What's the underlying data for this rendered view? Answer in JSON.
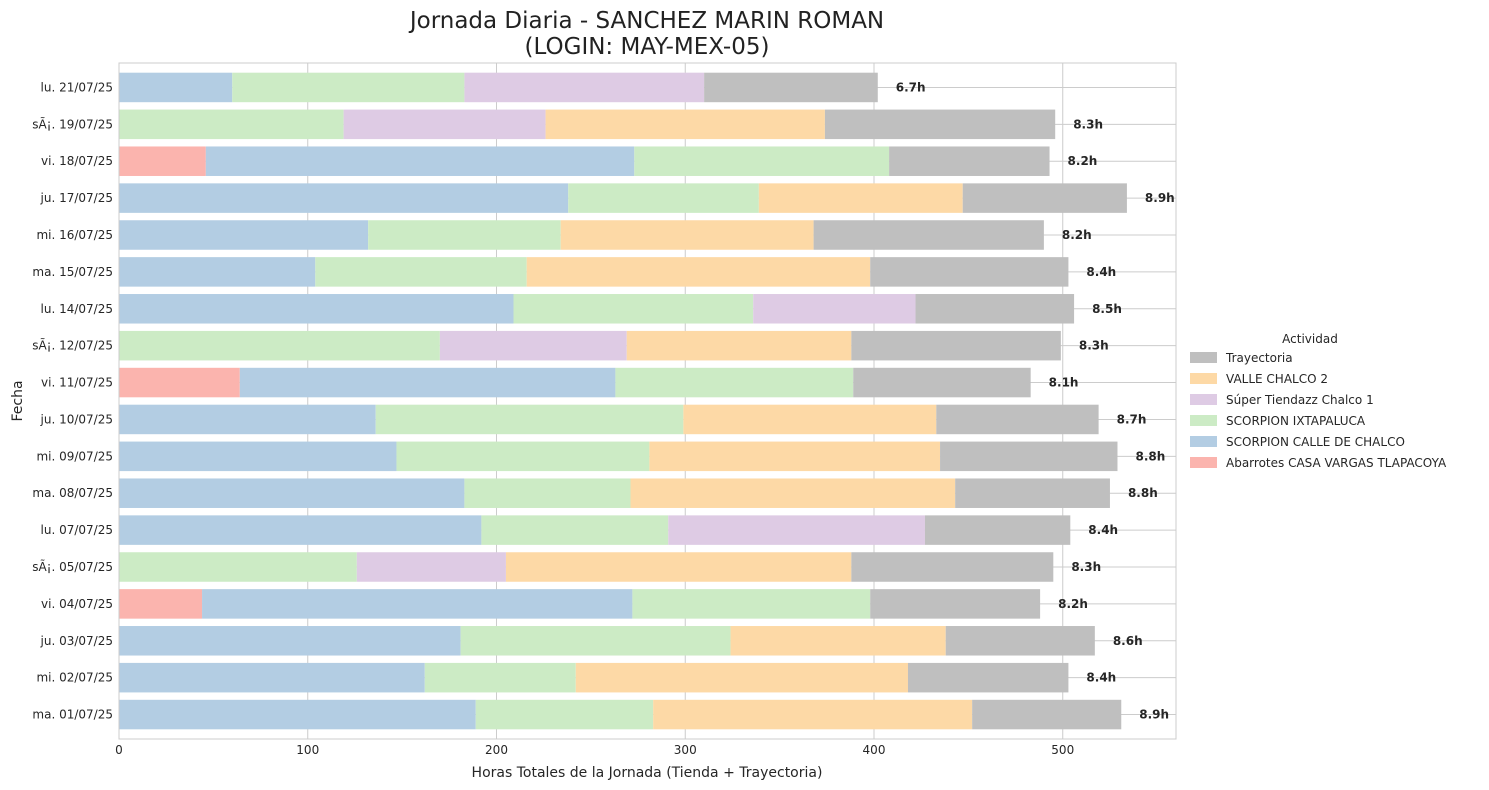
{
  "chart_data": {
    "type": "bar",
    "orientation": "horizontal",
    "stacked": true,
    "title_line1": "Jornada Diaria - SANCHEZ MARIN ROMAN",
    "title_line2": "(LOGIN: MAY-MEX-05)",
    "xlabel": "Horas Totales de la Jornada (Tienda + Trayectoria)",
    "ylabel": "Fecha",
    "xlim": [
      0,
      560
    ],
    "xticks": [
      0,
      100,
      200,
      300,
      400,
      500
    ],
    "grid": true,
    "legend_title": "Actividad",
    "legend_position": "center right",
    "legend": [
      {
        "name": "Trayectoria",
        "color": "#bfbfbf"
      },
      {
        "name": "VALLE CHALCO 2",
        "color": "#fdd9a6"
      },
      {
        "name": "Súper Tiendazz Chalco 1",
        "color": "#decbe4"
      },
      {
        "name": "SCORPION IXTAPALUCA",
        "color": "#ccebc5"
      },
      {
        "name": "SCORPION CALLE DE CHALCO",
        "color": "#b3cde3"
      },
      {
        "name": "Abarrotes CASA VARGAS TLAPACOYA",
        "color": "#fbb4ae"
      }
    ],
    "categories": [
      "lu. 21/07/25",
      "sÃ¡. 19/07/25",
      "vi. 18/07/25",
      "ju. 17/07/25",
      "mi. 16/07/25",
      "ma. 15/07/25",
      "lu. 14/07/25",
      "sÃ¡. 12/07/25",
      "vi. 11/07/25",
      "ju. 10/07/25",
      "mi. 09/07/25",
      "ma. 08/07/25",
      "lu. 07/07/25",
      "sÃ¡. 05/07/25",
      "vi. 04/07/25",
      "ju. 03/07/25",
      "mi. 02/07/25",
      "ma. 01/07/25"
    ],
    "series": [
      {
        "name": "Abarrotes CASA VARGAS TLAPACOYA",
        "color": "#fbb4ae",
        "values": [
          0,
          0,
          46,
          0,
          0,
          0,
          0,
          0,
          64,
          0,
          0,
          0,
          0,
          0,
          44,
          0,
          0,
          0
        ]
      },
      {
        "name": "SCORPION CALLE DE CHALCO",
        "color": "#b3cde3",
        "values": [
          60,
          0,
          227,
          238,
          132,
          104,
          209,
          0,
          199,
          136,
          147,
          183,
          192,
          0,
          228,
          181,
          162,
          189
        ]
      },
      {
        "name": "SCORPION IXTAPALUCA",
        "color": "#ccebc5",
        "values": [
          123,
          119,
          135,
          101,
          102,
          112,
          127,
          170,
          126,
          163,
          134,
          88,
          99,
          126,
          126,
          143,
          80,
          94
        ]
      },
      {
        "name": "Súper Tiendazz Chalco 1",
        "color": "#decbe4",
        "values": [
          127,
          107,
          0,
          0,
          0,
          0,
          86,
          99,
          0,
          0,
          0,
          0,
          136,
          79,
          0,
          0,
          0,
          0
        ]
      },
      {
        "name": "VALLE CHALCO 2",
        "color": "#fdd9a6",
        "values": [
          0,
          148,
          0,
          108,
          134,
          182,
          0,
          119,
          0,
          134,
          154,
          172,
          0,
          183,
          0,
          114,
          176,
          169
        ]
      },
      {
        "name": "Trayectoria",
        "color": "#bfbfbf",
        "values": [
          92,
          122,
          85,
          87,
          122,
          105,
          84,
          111,
          94,
          86,
          94,
          82,
          77,
          107,
          90,
          79,
          85,
          79
        ]
      }
    ],
    "totals": [
      "6.7h",
      "8.3h",
      "8.2h",
      "8.9h",
      "8.2h",
      "8.4h",
      "8.5h",
      "8.3h",
      "8.1h",
      "8.7h",
      "8.8h",
      "8.8h",
      "8.4h",
      "8.3h",
      "8.2h",
      "8.6h",
      "8.4h",
      "8.9h"
    ]
  }
}
